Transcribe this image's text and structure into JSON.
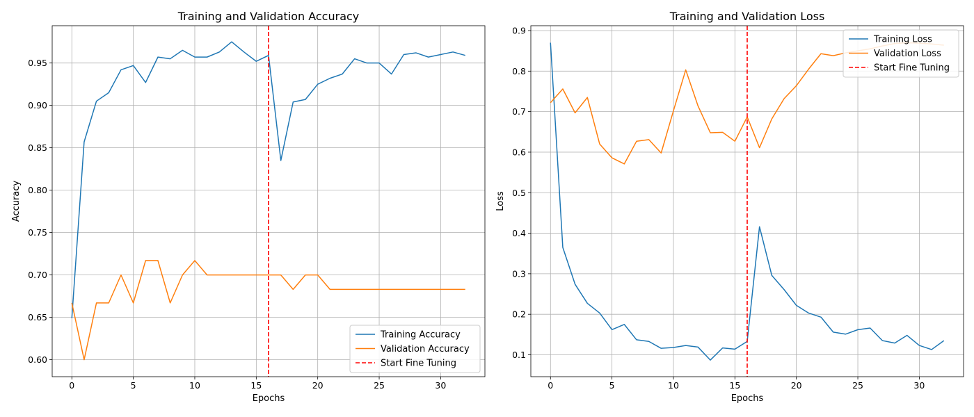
{
  "chart_data": [
    {
      "type": "line",
      "title": "Training and Validation Accuracy",
      "xlabel": "Epochs",
      "ylabel": "Accuracy",
      "xlim": [
        -1.6,
        33.6
      ],
      "ylim": [
        0.58,
        0.994
      ],
      "xticks": [
        0,
        5,
        10,
        15,
        20,
        25,
        30
      ],
      "yticks": [
        0.6,
        0.65,
        0.7,
        0.75,
        0.8,
        0.85,
        0.9,
        0.95
      ],
      "ytick_labels": [
        "0.60",
        "0.65",
        "0.70",
        "0.75",
        "0.80",
        "0.85",
        "0.90",
        "0.95"
      ],
      "grid": true,
      "legend_position": "bottom-right",
      "series": [
        {
          "name": "Training Accuracy",
          "color": "#1f77b4",
          "style": "solid",
          "values": [
            0.649,
            0.857,
            0.905,
            0.915,
            0.942,
            0.947,
            0.927,
            0.957,
            0.955,
            0.965,
            0.957,
            0.957,
            0.963,
            0.975,
            0.963,
            0.952,
            0.959,
            0.835,
            0.904,
            0.907,
            0.925,
            0.932,
            0.937,
            0.955,
            0.95,
            0.95,
            0.937,
            0.96,
            0.962,
            0.957,
            0.96,
            0.963,
            0.959
          ]
        },
        {
          "name": "Validation Accuracy",
          "color": "#ff7f0e",
          "style": "solid",
          "values": [
            0.667,
            0.6,
            0.667,
            0.667,
            0.7,
            0.667,
            0.717,
            0.717,
            0.667,
            0.7,
            0.717,
            0.7,
            0.7,
            0.7,
            0.7,
            0.7,
            0.7,
            0.7,
            0.683,
            0.7,
            0.7,
            0.683,
            0.683,
            0.683,
            0.683,
            0.683,
            0.683,
            0.683,
            0.683,
            0.683,
            0.683,
            0.683,
            0.683
          ]
        }
      ],
      "vlines": [
        {
          "name": "Start Fine Tuning",
          "x": 16,
          "color": "#ff0000",
          "style": "dashed"
        }
      ]
    },
    {
      "type": "line",
      "title": "Training and Validation Loss",
      "xlabel": "Epochs",
      "ylabel": "Loss",
      "xlim": [
        -1.6,
        33.6
      ],
      "ylim": [
        0.046,
        0.912
      ],
      "xticks": [
        0,
        5,
        10,
        15,
        20,
        25,
        30
      ],
      "yticks": [
        0.1,
        0.2,
        0.3,
        0.4,
        0.5,
        0.6,
        0.7,
        0.8,
        0.9
      ],
      "ytick_labels": [
        "0.1",
        "0.2",
        "0.3",
        "0.4",
        "0.5",
        "0.6",
        "0.7",
        "0.8",
        "0.9"
      ],
      "grid": true,
      "legend_position": "top-right",
      "series": [
        {
          "name": "Training Loss",
          "color": "#1f77b4",
          "style": "solid",
          "values": [
            0.87,
            0.365,
            0.274,
            0.227,
            0.203,
            0.162,
            0.175,
            0.137,
            0.133,
            0.116,
            0.118,
            0.123,
            0.119,
            0.087,
            0.117,
            0.114,
            0.133,
            0.416,
            0.296,
            0.261,
            0.222,
            0.203,
            0.193,
            0.156,
            0.151,
            0.162,
            0.166,
            0.135,
            0.129,
            0.148,
            0.123,
            0.113,
            0.135
          ]
        },
        {
          "name": "Validation Loss",
          "color": "#ff7f0e",
          "style": "solid",
          "values": [
            0.722,
            0.756,
            0.697,
            0.735,
            0.62,
            0.586,
            0.571,
            0.627,
            0.631,
            0.598,
            0.702,
            0.803,
            0.714,
            0.648,
            0.649,
            0.627,
            0.687,
            0.611,
            0.682,
            0.732,
            0.764,
            0.805,
            0.843,
            0.838,
            0.845,
            0.85,
            0.855,
            0.862,
            0.868,
            0.87,
            0.869,
            0.867,
            0.864
          ]
        }
      ],
      "vlines": [
        {
          "name": "Start Fine Tuning",
          "x": 16,
          "color": "#ff0000",
          "style": "dashed"
        }
      ]
    }
  ]
}
